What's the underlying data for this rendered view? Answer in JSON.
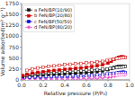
{
  "chart_data": {
    "type": "line",
    "xlabel": "Relative pressure (P/P₀)",
    "ylabel": "Volume adsorbed(m² g⁻¹)",
    "xlim": [
      0.0,
      1.0
    ],
    "ylim": [
      0,
      1750
    ],
    "xticks": [
      {
        "value": 0.0,
        "label": "0.0"
      },
      0.2,
      0.4,
      0.6,
      0.8,
      {
        "value": 1.0,
        "label": "1.0"
      }
    ],
    "yticks": [
      0,
      250,
      500,
      750,
      1000,
      1250,
      1500,
      1750
    ],
    "legend": "upper left",
    "series": [
      {
        "name": "a FeN/BP(10/90)",
        "color": "#111111",
        "marker": "square",
        "x": [
          0.01,
          0.05,
          0.1,
          0.15,
          0.2,
          0.25,
          0.3,
          0.35,
          0.4,
          0.45,
          0.5,
          0.55,
          0.6,
          0.65,
          0.7,
          0.75,
          0.8,
          0.83,
          0.86,
          0.88,
          0.9,
          0.92,
          0.94,
          0.95,
          0.96
        ],
        "values": [
          70,
          88,
          100,
          108,
          115,
          122,
          128,
          135,
          140,
          148,
          155,
          162,
          170,
          180,
          192,
          208,
          235,
          260,
          285,
          300,
          310,
          315,
          315,
          310,
          305
        ]
      },
      {
        "color": "#111111",
        "marker": "square-open",
        "x": [
          0.96,
          0.94,
          0.92,
          0.9,
          0.88,
          0.85,
          0.82,
          0.79,
          0.75,
          0.7,
          0.65,
          0.6,
          0.55,
          0.5,
          0.45,
          0.4,
          0.35,
          0.3,
          0.25,
          0.2,
          0.15,
          0.1,
          0.05
        ],
        "values": [
          305,
          300,
          295,
          288,
          282,
          272,
          262,
          252,
          242,
          235,
          228,
          222,
          215,
          208,
          200,
          192,
          183,
          174,
          165,
          155,
          143,
          128,
          105
        ]
      },
      {
        "name": "b FeN/BP(20/80)",
        "color": "#cc0000",
        "marker": "square",
        "x": [
          0.01,
          0.05,
          0.1,
          0.15,
          0.2,
          0.25,
          0.3,
          0.35,
          0.4,
          0.45,
          0.5,
          0.55,
          0.6,
          0.65,
          0.7,
          0.75,
          0.8,
          0.83,
          0.86,
          0.88,
          0.9,
          0.92,
          0.94,
          0.95,
          0.96
        ],
        "values": [
          100,
          130,
          158,
          175,
          190,
          205,
          218,
          230,
          242,
          253,
          265,
          277,
          290,
          305,
          325,
          348,
          385,
          425,
          470,
          500,
          520,
          530,
          528,
          522,
          515
        ]
      },
      {
        "color": "#cc0000",
        "marker": "square-open",
        "x": [
          0.96,
          0.94,
          0.92,
          0.9,
          0.88,
          0.85,
          0.82,
          0.79,
          0.75,
          0.7,
          0.65,
          0.6,
          0.55,
          0.5,
          0.45,
          0.4,
          0.35,
          0.3,
          0.25,
          0.2,
          0.15,
          0.1,
          0.05
        ],
        "values": [
          515,
          510,
          505,
          498,
          490,
          478,
          462,
          445,
          425,
          410,
          398,
          388,
          378,
          368,
          358,
          348,
          336,
          322,
          308,
          292,
          275,
          252,
          218
        ]
      },
      {
        "name": "c FeN/BP(50/50)",
        "color": "#0000cc",
        "marker": "square",
        "x": [
          0.01,
          0.05,
          0.1,
          0.15,
          0.2,
          0.25,
          0.3,
          0.35,
          0.4,
          0.45,
          0.5,
          0.55,
          0.6,
          0.65,
          0.7,
          0.75,
          0.8,
          0.83,
          0.86,
          0.88,
          0.9,
          0.92,
          0.94,
          0.95,
          0.96
        ],
        "values": [
          18,
          22,
          26,
          30,
          33,
          36,
          39,
          42,
          45,
          48,
          51,
          55,
          59,
          64,
          70,
          78,
          92,
          108,
          130,
          148,
          165,
          175,
          178,
          175,
          170
        ]
      },
      {
        "color": "#0000cc",
        "marker": "square-open",
        "x": [
          0.96,
          0.94,
          0.92,
          0.9,
          0.88,
          0.85,
          0.82,
          0.79,
          0.75,
          0.7,
          0.65,
          0.6,
          0.55,
          0.5,
          0.45,
          0.4,
          0.35,
          0.3,
          0.25,
          0.2,
          0.15,
          0.1,
          0.05
        ],
        "values": [
          170,
          168,
          165,
          162,
          158,
          152,
          145,
          136,
          125,
          115,
          106,
          98,
          90,
          83,
          77,
          71,
          66,
          61,
          56,
          51,
          46,
          40,
          30
        ]
      },
      {
        "name": "d FeN/BP(80/20)",
        "color": "#ee55cc",
        "marker": "diamond",
        "x": [
          0.01,
          0.05,
          0.1,
          0.15,
          0.2,
          0.25,
          0.3,
          0.35,
          0.4,
          0.45,
          0.5,
          0.55,
          0.6,
          0.65,
          0.7,
          0.75,
          0.8,
          0.83,
          0.86,
          0.88,
          0.9,
          0.92,
          0.94,
          0.95,
          0.96
        ],
        "values": [
          5,
          7,
          9,
          11,
          13,
          15,
          17,
          19,
          21,
          23,
          26,
          29,
          32,
          36,
          41,
          48,
          60,
          72,
          90,
          105,
          118,
          126,
          128,
          125,
          120
        ]
      },
      {
        "color": "#ee55cc",
        "marker": "diamond-open",
        "x": [
          0.96,
          0.94,
          0.92,
          0.9,
          0.88,
          0.85,
          0.82,
          0.79,
          0.75,
          0.7,
          0.65,
          0.6,
          0.55,
          0.5,
          0.45,
          0.4,
          0.35,
          0.3,
          0.25,
          0.2,
          0.15,
          0.1,
          0.05
        ],
        "values": [
          120,
          118,
          116,
          113,
          109,
          103,
          96,
          88,
          78,
          68,
          59,
          51,
          44,
          38,
          33,
          29,
          26,
          23,
          20,
          17,
          15,
          12,
          8
        ]
      }
    ]
  }
}
